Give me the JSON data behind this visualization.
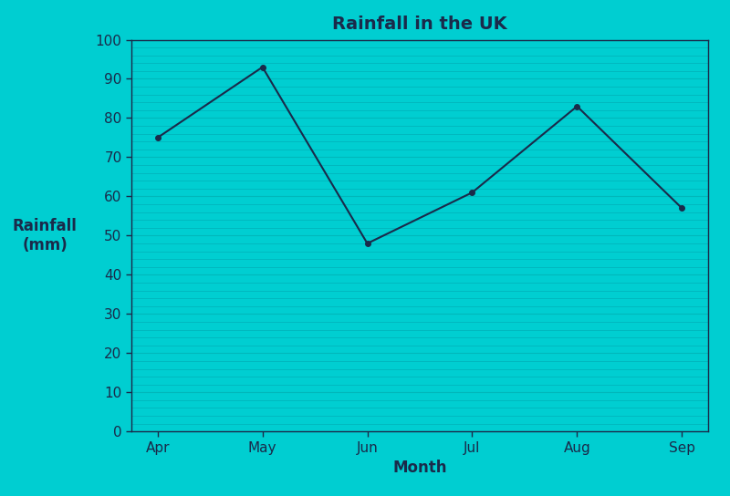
{
  "title": "Rainfall in the UK",
  "xlabel": "Month",
  "ylabel": "Rainfall\n(mm)",
  "months": [
    "Apr",
    "May",
    "Jun",
    "Jul",
    "Aug",
    "Sep"
  ],
  "rainfall": [
    75,
    93,
    48,
    61,
    83,
    57
  ],
  "ylim": [
    0,
    100
  ],
  "yticks": [
    0,
    10,
    20,
    30,
    40,
    50,
    60,
    70,
    80,
    90,
    100
  ],
  "background_color": "#00CED1",
  "plot_bg_color": "#00CED1",
  "line_color": "#1a2a4a",
  "marker_color": "#1a2a4a",
  "text_color": "#1a2a4a",
  "grid_color": "#00B8BB",
  "minor_grid_color": "#00B0B8",
  "title_fontsize": 14,
  "label_fontsize": 12,
  "tick_fontsize": 11
}
